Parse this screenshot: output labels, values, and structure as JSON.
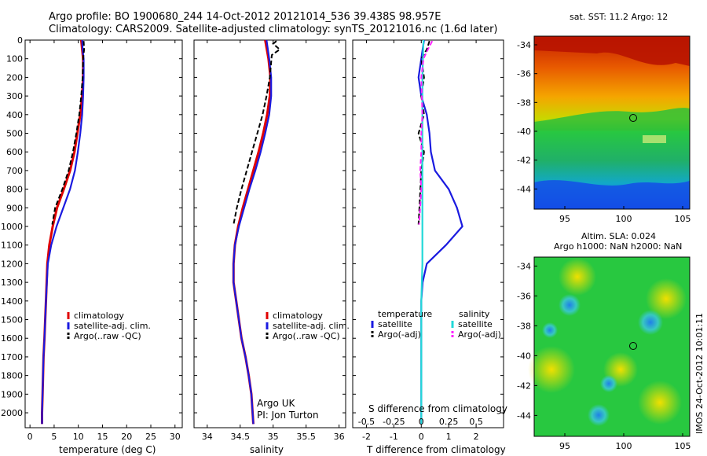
{
  "header": {
    "title1": "Argo profile: BO 1900680_244 14-Oct-2012 20121014_536 39.438S 98.957E",
    "title2": "Climatology: CARS2009. Satellite-adjusted climatology: synTS_20121016.nc (1.6d later)"
  },
  "colors": {
    "climatology": "#e00000",
    "satellite": "#1a1ae0",
    "argo": "#000000",
    "salinity_satellite": "#22d8d8",
    "salinity_argo": "#ff22ff"
  },
  "panel1": {
    "xlabel": "temperature (deg C)",
    "xticks": [
      "0",
      "5",
      "10",
      "15",
      "20",
      "25",
      "30"
    ],
    "legend": [
      "climatology",
      "satellite-adj. clim.",
      "Argo(..raw -QC)"
    ]
  },
  "panel2": {
    "xlabel": "salinity",
    "xticks": [
      "34",
      "34.5",
      "35",
      "35.5",
      "36"
    ],
    "legend": [
      "climatology",
      "satellite-adj. clim.",
      "Argo(..raw -QC)"
    ],
    "credit1": "Argo UK",
    "credit2": "PI: Jon Turton"
  },
  "panel3": {
    "xlabel": "T difference from climatology",
    "xticks": [
      "-2",
      "-1",
      "0",
      "1",
      "2"
    ],
    "top_label": "S difference from climatology",
    "top_ticks": [
      "-0.5",
      "-0.25",
      "0",
      "0.25",
      "0.5"
    ],
    "legend_t_head": "temperature",
    "legend_s_head": "salinity",
    "legend_t": [
      "satellite",
      "Argo(-adj)"
    ],
    "legend_s": [
      "satellite",
      "Argo(-adj)"
    ]
  },
  "yticks": [
    "0",
    "100",
    "200",
    "300",
    "400",
    "500",
    "600",
    "700",
    "800",
    "900",
    "1000",
    "1100",
    "1200",
    "1300",
    "1400",
    "1500",
    "1600",
    "1700",
    "1800",
    "1900",
    "2000"
  ],
  "map1": {
    "title": "sat. SST: 11.2 Argo: 12",
    "yticks": [
      "-34",
      "-36",
      "-38",
      "-40",
      "-42",
      "-44"
    ],
    "xticks": [
      "95",
      "100",
      "105"
    ]
  },
  "map2": {
    "title1": "Altim. SLA: 0.024",
    "title2": "Argo h1000: NaN h2000: NaN",
    "yticks": [
      "-34",
      "-36",
      "-38",
      "-40",
      "-42",
      "-44"
    ],
    "xticks": [
      "95",
      "100",
      "105"
    ]
  },
  "footer": {
    "stamp": "IMOS 24-Oct-2012 10:01:11"
  },
  "chart_data": [
    {
      "type": "line",
      "xlabel": "temperature (deg C)",
      "ylabel": "",
      "xlim": [
        -1,
        31.5
      ],
      "ylim": [
        2080,
        0
      ],
      "series": [
        {
          "name": "climatology",
          "x": [
            10.6,
            10.8,
            11.0,
            11.0,
            10.8,
            10.4,
            9.8,
            9.2,
            8.3,
            7.0,
            5.6,
            4.7,
            4.0,
            3.6,
            3.3,
            3.0,
            2.8,
            2.7,
            2.6,
            2.5,
            2.5
          ],
          "y": [
            0,
            50,
            100,
            200,
            300,
            400,
            500,
            600,
            700,
            800,
            900,
            1000,
            1100,
            1200,
            1400,
            1600,
            1700,
            1800,
            1900,
            2000,
            2060
          ]
        },
        {
          "name": "satellite-adj. clim.",
          "x": [
            10.8,
            10.9,
            11.1,
            11.1,
            11.0,
            10.8,
            10.4,
            9.9,
            9.3,
            8.3,
            6.9,
            5.5,
            4.4,
            3.7,
            3.3,
            3.0,
            2.8,
            2.7,
            2.6,
            2.5,
            2.5
          ],
          "y": [
            0,
            50,
            100,
            200,
            300,
            400,
            500,
            600,
            700,
            800,
            900,
            1000,
            1100,
            1200,
            1400,
            1600,
            1700,
            1800,
            1900,
            2000,
            2060
          ]
        },
        {
          "name": "Argo(..raw -QC)",
          "x": [
            11.1,
            11.2,
            11.0,
            10.9,
            10.6,
            10.2,
            9.6,
            8.9,
            8.0,
            6.7,
            5.2,
            4.6
          ],
          "y": [
            5,
            50,
            100,
            200,
            300,
            400,
            500,
            600,
            700,
            800,
            900,
            990
          ]
        }
      ]
    },
    {
      "type": "line",
      "xlabel": "salinity",
      "ylabel": "",
      "xlim": [
        33.8,
        36.1
      ],
      "ylim": [
        2080,
        0
      ],
      "series": [
        {
          "name": "climatology",
          "x": [
            34.88,
            34.93,
            34.96,
            34.95,
            34.91,
            34.85,
            34.78,
            34.7,
            34.62,
            34.54,
            34.47,
            34.42,
            34.4,
            34.4,
            34.44,
            34.52,
            34.58,
            34.63,
            34.67,
            34.7
          ],
          "y": [
            0,
            100,
            200,
            300,
            400,
            500,
            600,
            700,
            800,
            900,
            1000,
            1100,
            1200,
            1300,
            1400,
            1600,
            1700,
            1800,
            1900,
            2060
          ]
        },
        {
          "name": "satellite-adj. clim.",
          "x": [
            34.9,
            34.94,
            34.97,
            34.97,
            34.94,
            34.88,
            34.81,
            34.73,
            34.64,
            34.56,
            34.48,
            34.42,
            34.4,
            34.4,
            34.44,
            34.52,
            34.58,
            34.63,
            34.67,
            34.7
          ],
          "y": [
            0,
            100,
            200,
            300,
            400,
            500,
            600,
            700,
            800,
            900,
            1000,
            1100,
            1200,
            1300,
            1400,
            1600,
            1700,
            1800,
            1900,
            2060
          ]
        },
        {
          "name": "Argo(..raw -QC)",
          "x": [
            35.05,
            35.0,
            35.1,
            34.98,
            34.95,
            34.9,
            34.84,
            34.76,
            34.68,
            34.6,
            34.52,
            34.45,
            34.4
          ],
          "y": [
            5,
            20,
            50,
            80,
            200,
            300,
            400,
            500,
            600,
            700,
            800,
            900,
            990
          ]
        }
      ]
    },
    {
      "type": "line",
      "xlabel": "T difference from climatology",
      "ylabel": "",
      "xlim": [
        -2.5,
        3
      ],
      "ylim": [
        2080,
        0
      ],
      "series": [
        {
          "name": "satellite",
          "x": [
            0.1,
            0.05,
            0.0,
            -0.1,
            0.0,
            0.2,
            0.3,
            0.35,
            0.5,
            1.0,
            1.3,
            1.5,
            0.9,
            0.2,
            0.05,
            0.0,
            0.0,
            0.0,
            0.0
          ],
          "y": [
            0,
            50,
            100,
            200,
            300,
            400,
            500,
            600,
            700,
            800,
            900,
            1000,
            1100,
            1200,
            1300,
            1400,
            1600,
            1800,
            2060
          ]
        },
        {
          "name": "Argo(-adj)",
          "x": [
            0.3,
            0.2,
            0.0,
            0.1,
            0.0,
            0.1,
            -0.1,
            0.1,
            0.0,
            -0.1
          ],
          "y": [
            5,
            50,
            100,
            200,
            300,
            400,
            500,
            600,
            700,
            990
          ]
        }
      ]
    },
    {
      "type": "line",
      "xlabel": "S difference from climatology",
      "ylabel": "",
      "xlim": [
        -0.625,
        0.75
      ],
      "ylim": [
        2080,
        0
      ],
      "series": [
        {
          "name": "satellite",
          "x": [
            0.02,
            0.015,
            0.01,
            0.01,
            0.01,
            0.01,
            0.01,
            0.01,
            0.0,
            0.0,
            0.0,
            0.0
          ],
          "y": [
            0,
            100,
            200,
            400,
            600,
            800,
            1000,
            1200,
            1400,
            1600,
            1800,
            2060
          ]
        },
        {
          "name": "Argo(-adj)",
          "x": [
            0.1,
            0.06,
            0.02,
            0.0,
            0.01,
            0.0,
            0.0,
            -0.01,
            0.0,
            -0.02
          ],
          "y": [
            5,
            50,
            100,
            200,
            400,
            500,
            600,
            700,
            800,
            990
          ]
        }
      ]
    }
  ]
}
